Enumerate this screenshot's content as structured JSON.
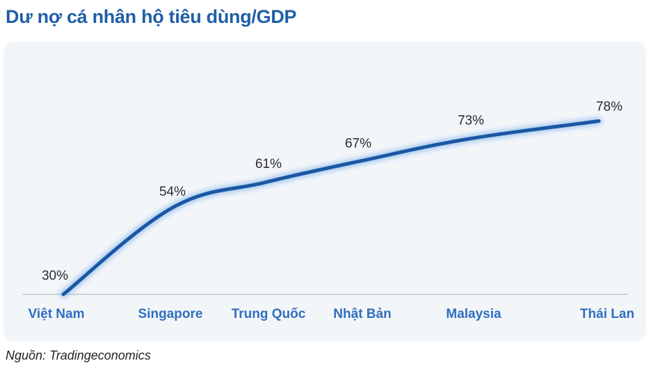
{
  "colors": {
    "title": "#1f5fa8",
    "line": "#1a57a4",
    "glow": "#7fb2ea",
    "category_label": "#2f6fc0",
    "value_label": "#2b2b2b",
    "axis": "#bcc8d6",
    "panel_bg": "#f3f6f9"
  },
  "header": {
    "title": "Dư nợ cá nhân hộ tiêu dùng/GDP"
  },
  "footer": {
    "source": "Nguồn: Tradingeconomics"
  },
  "chart_data": {
    "type": "line",
    "title": "Dư nợ cá nhân hộ tiêu dùng/GDP",
    "xlabel": "",
    "ylabel": "",
    "categories": [
      "Việt Nam",
      "Singapore",
      "Trung Quốc",
      "Nhật Bản",
      "Malaysia",
      "Thái Lan"
    ],
    "values": [
      30,
      54,
      61,
      67,
      73,
      78
    ],
    "data_labels": [
      "30%",
      "54%",
      "61%",
      "67%",
      "73%",
      "78%"
    ],
    "ylim": [
      0,
      100
    ],
    "grid": false,
    "legend": "none"
  }
}
